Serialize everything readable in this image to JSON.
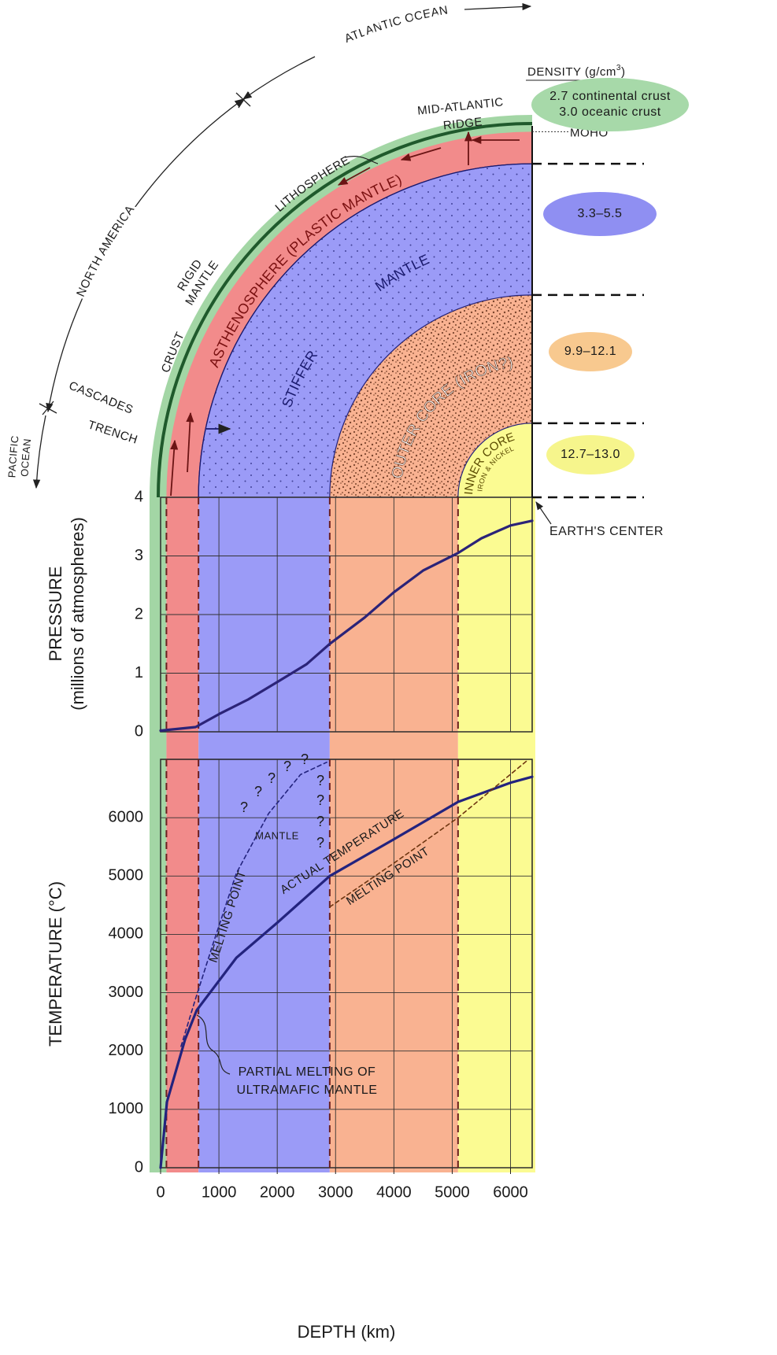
{
  "diagram": {
    "atlantic_ocean": "ATLANTIC OCEAN",
    "north_america": "NORTH AMERICA",
    "pacific_ocean": [
      "PACIFIC",
      "OCEAN"
    ],
    "mid_atlantic_ridge": [
      "MID-ATLANTIC",
      "RIDGE"
    ],
    "lithosphere": "LITHOSPHERE",
    "rigid_mantle": [
      "RIGID",
      "MANTLE"
    ],
    "crust": "CRUST",
    "cascades": "CASCADES",
    "trench": "TRENCH",
    "asthenosphere": "ASTHENOSPHERE (PLASTIC MANTLE)",
    "mantle": "MANTLE",
    "stiffer": "STIFFER",
    "outer_core": "OUTER CORE   (IRON?)",
    "inner_core": "INNER CORE",
    "iron_nickel": "IRON & NICKEL",
    "moho": "MOHO",
    "earths_center": "EARTH'S CENTER",
    "density": {
      "title": "DENSITY (g/cm",
      "sup": "3",
      "close": ")",
      "values": [
        [
          "2.7 continental crust",
          "3.0 oceanic crust"
        ],
        "3.3–5.5",
        "9.9–12.1",
        "12.7–13.0"
      ],
      "colors": [
        "#a7d9a9",
        "#8f8ff2",
        "#f8c98f",
        "#f6f58c"
      ]
    },
    "layers": [
      {
        "from": 0,
        "to": 100,
        "color": "#a3d6a5"
      },
      {
        "from": 100,
        "to": 650,
        "color": "#f28b8b"
      },
      {
        "from": 650,
        "to": 2900,
        "color": "#9b9bf7",
        "pattern": "dots"
      },
      {
        "from": 2900,
        "to": 5100,
        "color": "#f9b291",
        "pattern": "speckle"
      },
      {
        "from": 5100,
        "to": 6371,
        "color": "#fbfb92"
      }
    ]
  },
  "chart_data": [
    {
      "type": "line",
      "ylabel": [
        "PRESSURE",
        "(millions of atmospheres)"
      ],
      "xlim": [
        0,
        6371
      ],
      "ylim": [
        0,
        4
      ],
      "yticks": [
        0,
        1,
        2,
        3,
        4
      ],
      "grid": true,
      "x": [
        0,
        600,
        1000,
        1500,
        2000,
        2500,
        2900,
        3500,
        4000,
        4500,
        5100,
        5500,
        6000,
        6371
      ],
      "series": [
        {
          "color": "#2b2378",
          "values": [
            0.02,
            0.08,
            0.3,
            0.55,
            0.85,
            1.15,
            1.5,
            1.95,
            2.38,
            2.75,
            3.05,
            3.3,
            3.52,
            3.6
          ]
        }
      ]
    },
    {
      "type": "line",
      "ylabel": "TEMPERATURE  (°C)",
      "xlabel": "DEPTH (km)",
      "xlim": [
        0,
        6371
      ],
      "ylim": [
        0,
        7000
      ],
      "xticks": [
        0,
        1000,
        2000,
        3000,
        4000,
        5000,
        6000
      ],
      "yticks": [
        0,
        1000,
        2000,
        3000,
        4000,
        5000,
        6000
      ],
      "grid": true,
      "series": [
        {
          "name": "ACTUAL TEMPERATURE",
          "color": "#23237e",
          "x": [
            0,
            110,
            420,
            620,
            1300,
            2000,
            2900,
            4000,
            5100,
            6000,
            6371
          ],
          "values": [
            0,
            1130,
            2200,
            2700,
            3600,
            4200,
            5000,
            5630,
            6270,
            6600,
            6700
          ]
        },
        {
          "name": "MELTING POINT",
          "color": "#23237e",
          "dashed": true,
          "x": [
            350,
            600,
            900,
            1300,
            1850,
            2400,
            2850
          ],
          "values": [
            2080,
            2900,
            3840,
            5050,
            6070,
            6740,
            6950
          ]
        },
        {
          "name": "MELTING POINT",
          "color": "#6e3510",
          "dashed": true,
          "x": [
            2900,
            4000,
            5100,
            6300
          ],
          "values": [
            4470,
            5220,
            6000,
            6990
          ]
        }
      ],
      "annotations": {
        "mantle": "MANTLE",
        "partial_melting": [
          "PARTIAL MELTING OF",
          "ULTRAMAFIC MANTLE"
        ],
        "question": "?"
      }
    }
  ]
}
